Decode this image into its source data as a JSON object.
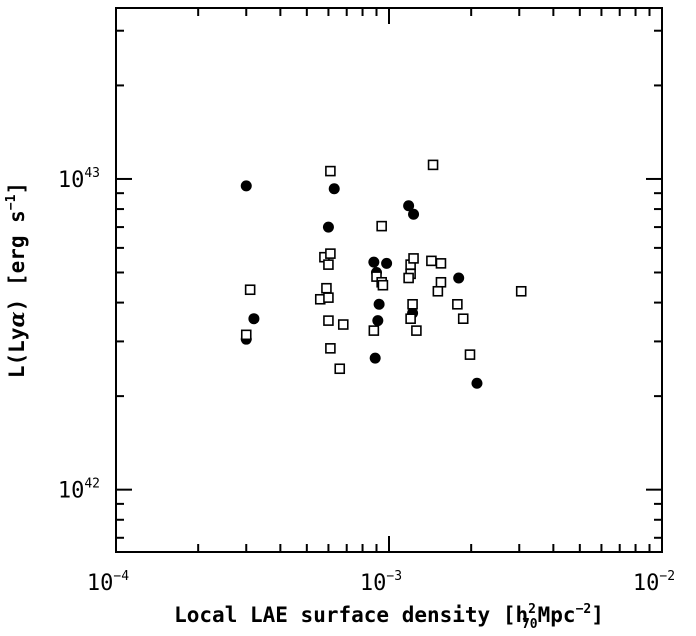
{
  "chart_data": {
    "type": "scatter",
    "xlabel": "Local LAE surface density [h²₇₀Mpc⁻²]",
    "xlabel_parts": {
      "main": "Local LAE surface density [h",
      "sup": "2",
      "sub": "70",
      "after": "Mpc",
      "exp": "−2",
      "close": "]"
    },
    "ylabel": "L(Lyα) [erg s⁻¹]",
    "ylabel_parts": {
      "main": "L(Ly",
      "alpha": "α",
      "mid": ") [erg s",
      "exp": "−1",
      "close": "]"
    },
    "xscale": "log",
    "yscale": "log",
    "xlim": [
      0.0001,
      0.01
    ],
    "ylim": [
      6.3e+41,
      3.55e+43
    ],
    "x_ticks": [
      {
        "value": 0.0001,
        "base": "10",
        "exp": "−4"
      },
      {
        "value": 0.001,
        "base": "10",
        "exp": "−3"
      },
      {
        "value": 0.01,
        "base": "10",
        "exp": "−2"
      }
    ],
    "y_ticks": [
      {
        "value": 1e+42,
        "base": "10",
        "exp": "42"
      },
      {
        "value": 1e+43,
        "base": "10",
        "exp": "43"
      }
    ],
    "grid": false,
    "series": [
      {
        "marker": "filled-circle",
        "color": "#000000",
        "points": [
          [
            0.0003,
            9.5e+42
          ],
          [
            0.0006,
            7e+42
          ],
          [
            0.00063,
            9.3e+42
          ],
          [
            0.0003,
            3.05e+42
          ],
          [
            0.00032,
            3.55e+42
          ],
          [
            0.00088,
            5.4e+42
          ],
          [
            0.0009,
            5e+42
          ],
          [
            0.00098,
            5.35e+42
          ],
          [
            0.00092,
            3.95e+42
          ],
          [
            0.00091,
            3.5e+42
          ],
          [
            0.00089,
            2.65e+42
          ],
          [
            0.00118,
            8.2e+42
          ],
          [
            0.00123,
            7.7e+42
          ],
          [
            0.00122,
            3.7e+42
          ],
          [
            0.0018,
            4.8e+42
          ],
          [
            0.0021,
            2.2e+42
          ]
        ]
      },
      {
        "marker": "open-square",
        "color": "#000000",
        "points": [
          [
            0.0003,
            3.15e+42
          ],
          [
            0.00031,
            4.4e+42
          ],
          [
            0.00058,
            5.6e+42
          ],
          [
            0.00061,
            5.75e+42
          ],
          [
            0.0006,
            5.3e+42
          ],
          [
            0.00059,
            4.45e+42
          ],
          [
            0.00056,
            4.1e+42
          ],
          [
            0.0006,
            4.15e+42
          ],
          [
            0.0006,
            3.5e+42
          ],
          [
            0.00061,
            2.85e+42
          ],
          [
            0.00066,
            2.45e+42
          ],
          [
            0.00068,
            3.4e+42
          ],
          [
            0.00061,
            1.06e+43
          ],
          [
            0.00094,
            7.05e+42
          ],
          [
            0.0009,
            4.85e+42
          ],
          [
            0.00094,
            4.65e+42
          ],
          [
            0.00095,
            4.55e+42
          ],
          [
            0.00088,
            3.25e+42
          ],
          [
            0.0012,
            5.3e+42
          ],
          [
            0.00123,
            5.55e+42
          ],
          [
            0.0012,
            4.95e+42
          ],
          [
            0.00118,
            4.8e+42
          ],
          [
            0.00122,
            3.95e+42
          ],
          [
            0.0012,
            3.55e+42
          ],
          [
            0.00126,
            3.25e+42
          ],
          [
            0.00145,
            1.11e+43
          ],
          [
            0.00143,
            5.45e+42
          ],
          [
            0.00155,
            5.35e+42
          ],
          [
            0.00155,
            4.65e+42
          ],
          [
            0.00151,
            4.35e+42
          ],
          [
            0.00178,
            3.95e+42
          ],
          [
            0.00187,
            3.55e+42
          ],
          [
            0.00198,
            2.72e+42
          ],
          [
            0.00305,
            4.35e+42
          ]
        ]
      }
    ]
  }
}
